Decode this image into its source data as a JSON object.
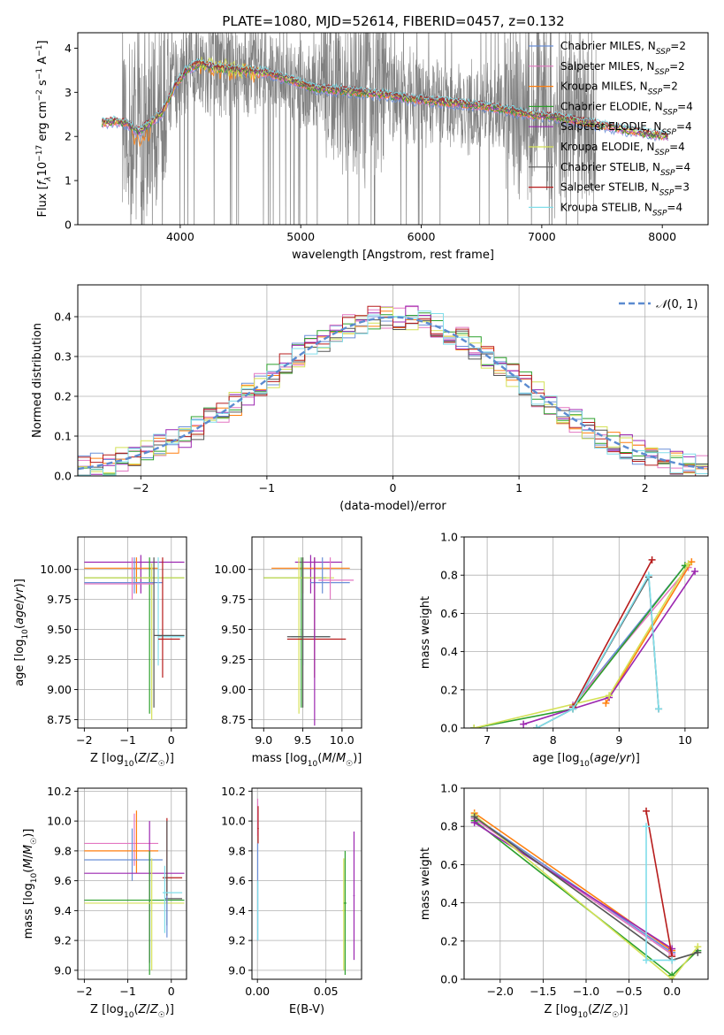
{
  "figure_title": "PLATE=1080, MJD=52614, FIBERID=0457, z=0.132",
  "legend_entries": [
    {
      "label": "Chabrier MILES, N",
      "sub": "SSP",
      "suffix": "=2",
      "color": "#6a8fd8"
    },
    {
      "label": "Salpeter MILES, N",
      "sub": "SSP",
      "suffix": "=2",
      "color": "#e377c2"
    },
    {
      "label": "Kroupa MILES, N",
      "sub": "SSP",
      "suffix": "=2",
      "color": "#ff7f0e"
    },
    {
      "label": "Chabrier ELODIE, N",
      "sub": "SSP",
      "suffix": "=4",
      "color": "#2ca02c"
    },
    {
      "label": "Salpeter ELODIE, N",
      "sub": "SSP",
      "suffix": "=4",
      "color": "#9c27b0"
    },
    {
      "label": "Kroupa ELODIE, N",
      "sub": "SSP",
      "suffix": "=4",
      "color": "#d4e157"
    },
    {
      "label": "Chabrier STELIB, N",
      "sub": "SSP",
      "suffix": "=4",
      "color": "#555555"
    },
    {
      "label": "Salpeter STELIB, N",
      "sub": "SSP",
      "suffix": "=3",
      "color": "#b71c1c"
    },
    {
      "label": "Kroupa STELIB, N",
      "sub": "SSP",
      "suffix": "=4",
      "color": "#80deea"
    }
  ],
  "chart_data": [
    {
      "id": "spectrum",
      "type": "line",
      "title": "PLATE=1080, MJD=52614, FIBERID=0457, z=0.132",
      "xlabel": "wavelength [Angstrom, rest frame]",
      "ylabel": "Flux [f",
      "ylabel_full": "Flux [fλ10⁻¹⁷ erg cm⁻² s⁻¹ A⁻¹]",
      "xlim": [
        3150,
        8380
      ],
      "ylim": [
        0,
        4.35
      ],
      "xticks": [
        4000,
        5000,
        6000,
        7000,
        8000
      ],
      "yticks": [
        0,
        1,
        2,
        3,
        4
      ],
      "grid": false,
      "legend_placement": "right",
      "model_continuum": {
        "x": [
          3350,
          3450,
          3550,
          3650,
          3750,
          3850,
          3950,
          4050,
          4150,
          4300,
          4500,
          4700,
          4900,
          5100,
          5300,
          5500,
          5700,
          5900,
          6100,
          6300,
          6500,
          6700,
          6900,
          7100,
          7300,
          7500,
          7700,
          7900,
          8050
        ],
        "y": [
          2.3,
          2.35,
          2.3,
          2.1,
          2.3,
          2.55,
          3.1,
          3.5,
          3.65,
          3.55,
          3.5,
          3.45,
          3.3,
          3.1,
          3.05,
          3.0,
          2.95,
          2.85,
          2.8,
          2.75,
          2.7,
          2.6,
          2.5,
          2.45,
          2.35,
          2.25,
          2.15,
          2.05,
          2.0
        ]
      }
    },
    {
      "id": "residual_hist",
      "type": "line",
      "xlabel": "(data-model)/error",
      "ylabel": "Normed distribution",
      "xlim": [
        -2.5,
        2.5
      ],
      "ylim": [
        0,
        0.48
      ],
      "xticks": [
        -2,
        -1,
        0,
        1,
        2
      ],
      "yticks": [
        0.0,
        0.1,
        0.2,
        0.3,
        0.4
      ],
      "grid": true,
      "legend_placement": "top-right",
      "reference_label": "N(0,1)",
      "reference_color": "#5b8bd0"
    },
    {
      "id": "age_vs_Z",
      "type": "scatter",
      "xlabel": "Z [log10(Z/Z☉)]",
      "ylabel": "age  [log10(age/yr)]",
      "xlim": [
        -2.15,
        0.35
      ],
      "ylim": [
        8.68,
        10.27
      ],
      "xticks": [
        -2,
        -1,
        0
      ],
      "yticks": [
        8.75,
        9.0,
        9.25,
        9.5,
        9.75,
        10.0
      ],
      "grid": true
    },
    {
      "id": "age_vs_mass",
      "type": "scatter",
      "xlabel": "mass [log10(M/M☉)]",
      "ylabel": "",
      "xlim": [
        8.85,
        10.25
      ],
      "ylim": [
        8.68,
        10.27
      ],
      "xticks": [
        9.0,
        9.5,
        10.0
      ],
      "yticks": [
        8.75,
        9.0,
        9.25,
        9.5,
        9.75,
        10.0
      ],
      "grid": true
    },
    {
      "id": "weight_vs_age",
      "type": "line",
      "xlabel": "age  [log10(age/yr)]",
      "ylabel": "mass weight",
      "xlim": [
        6.65,
        10.35
      ],
      "ylim": [
        0,
        1.0
      ],
      "xticks": [
        7,
        8,
        9,
        10
      ],
      "yticks": [
        0.0,
        0.2,
        0.4,
        0.6,
        0.8,
        1.0
      ],
      "grid": true,
      "series": [
        {
          "color": "#6a8fd8",
          "x": [
            8.3,
            10.0
          ],
          "y": [
            0.12,
            0.85
          ]
        },
        {
          "color": "#e377c2",
          "x": [
            8.3,
            10.05
          ],
          "y": [
            0.12,
            0.84
          ]
        },
        {
          "color": "#ff7f0e",
          "x": [
            8.8,
            10.1
          ],
          "y": [
            0.13,
            0.87
          ]
        },
        {
          "color": "#2ca02c",
          "x": [
            6.8,
            8.3,
            10.0
          ],
          "y": [
            0.0,
            0.1,
            0.85
          ]
        },
        {
          "color": "#9c27b0",
          "x": [
            7.55,
            8.85,
            10.15
          ],
          "y": [
            0.02,
            0.16,
            0.82
          ]
        },
        {
          "color": "#d4e157",
          "x": [
            6.8,
            8.85,
            10.05
          ],
          "y": [
            0.0,
            0.17,
            0.86
          ]
        },
        {
          "color": "#555555",
          "x": [
            7.75,
            8.3,
            9.45,
            9.6
          ],
          "y": [
            0.0,
            0.1,
            0.79,
            0.1
          ]
        },
        {
          "color": "#b71c1c",
          "x": [
            8.3,
            9.5
          ],
          "y": [
            0.11,
            0.88
          ]
        },
        {
          "color": "#80deea",
          "x": [
            7.75,
            8.3,
            9.45,
            9.6
          ],
          "y": [
            0.0,
            0.1,
            0.8,
            0.1
          ]
        }
      ]
    },
    {
      "id": "mass_vs_Z",
      "type": "scatter",
      "xlabel": "Z [log10(Z/Z☉)]",
      "ylabel": "mass [log10(M/M☉)]",
      "xlim": [
        -2.15,
        0.35
      ],
      "ylim": [
        8.94,
        10.22
      ],
      "xticks": [
        -2,
        -1,
        0
      ],
      "yticks": [
        9.0,
        9.2,
        9.4,
        9.6,
        9.8,
        10.0,
        10.2
      ],
      "grid": true
    },
    {
      "id": "mass_vs_EBV",
      "type": "scatter",
      "xlabel": "E(B-V)",
      "ylabel": "",
      "xlim": [
        -0.004,
        0.076
      ],
      "ylim": [
        8.94,
        10.22
      ],
      "xticks": [
        0.0,
        0.05
      ],
      "yticks": [
        9.0,
        9.2,
        9.4,
        9.6,
        9.8,
        10.0,
        10.2
      ],
      "grid": true
    },
    {
      "id": "weight_vs_Z",
      "type": "line",
      "xlabel": "Z [log10(Z/Z☉)]",
      "ylabel": "mass weight",
      "xlim": [
        -2.42,
        0.42
      ],
      "ylim": [
        0,
        1.0
      ],
      "xticks": [
        -2.0,
        -1.5,
        -1.0,
        -0.5,
        0.0
      ],
      "yticks": [
        0.0,
        0.2,
        0.4,
        0.6,
        0.8,
        1.0
      ],
      "grid": true,
      "series": [
        {
          "color": "#6a8fd8",
          "x": [
            -2.3,
            0.0
          ],
          "y": [
            0.85,
            0.14
          ]
        },
        {
          "color": "#e377c2",
          "x": [
            -2.3,
            0.0
          ],
          "y": [
            0.84,
            0.13
          ]
        },
        {
          "color": "#ff7f0e",
          "x": [
            -2.3,
            0.0
          ],
          "y": [
            0.87,
            0.15
          ]
        },
        {
          "color": "#2ca02c",
          "x": [
            -2.3,
            0.0,
            0.3
          ],
          "y": [
            0.83,
            0.02,
            0.15
          ]
        },
        {
          "color": "#9c27b0",
          "x": [
            -2.3,
            0.0
          ],
          "y": [
            0.82,
            0.16
          ]
        },
        {
          "color": "#d4e157",
          "x": [
            -2.3,
            0.0,
            0.3
          ],
          "y": [
            0.86,
            0.0,
            0.17
          ]
        },
        {
          "color": "#555555",
          "x": [
            -2.3,
            0.0,
            0.3
          ],
          "y": [
            0.85,
            0.1,
            0.14
          ]
        },
        {
          "color": "#b71c1c",
          "x": [
            -0.3,
            0.0
          ],
          "y": [
            0.88,
            0.12
          ]
        },
        {
          "color": "#80deea",
          "x": [
            -0.3,
            -0.3,
            0.0
          ],
          "y": [
            0.8,
            0.1,
            0.1
          ]
        }
      ]
    }
  ]
}
